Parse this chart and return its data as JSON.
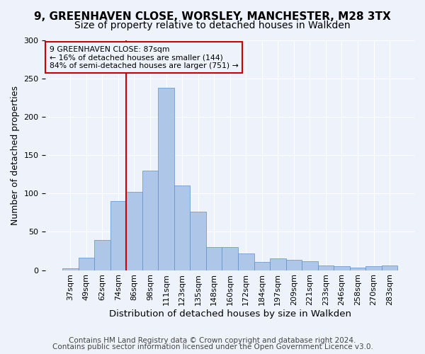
{
  "title1": "9, GREENHAVEN CLOSE, WORSLEY, MANCHESTER, M28 3TX",
  "title2": "Size of property relative to detached houses in Walkden",
  "xlabel": "Distribution of detached houses by size in Walkden",
  "ylabel": "Number of detached properties",
  "footer1": "Contains HM Land Registry data © Crown copyright and database right 2024.",
  "footer2": "Contains public sector information licensed under the Open Government Licence v3.0.",
  "annotation_line1": "9 GREENHAVEN CLOSE: 87sqm",
  "annotation_line2": "← 16% of detached houses are smaller (144)",
  "annotation_line3": "84% of semi-detached houses are larger (751) →",
  "bar_values": [
    2,
    16,
    39,
    90,
    102,
    130,
    238,
    110,
    76,
    30,
    30,
    22,
    11,
    15,
    13,
    12,
    6,
    5,
    3,
    5,
    6
  ],
  "bar_labels": [
    "37sqm",
    "49sqm",
    "62sqm",
    "74sqm",
    "86sqm",
    "98sqm",
    "111sqm",
    "123sqm",
    "135sqm",
    "148sqm",
    "160sqm",
    "172sqm",
    "184sqm",
    "197sqm",
    "209sqm",
    "221sqm",
    "233sqm",
    "246sqm",
    "258sqm",
    "270sqm",
    "283sqm"
  ],
  "bar_color": "#aec6e8",
  "bar_edge_color": "#5b8fc9",
  "vline_x_index": 4,
  "vline_color": "#cc0000",
  "annotation_box_color": "#cc0000",
  "ylim": [
    0,
    300
  ],
  "yticks": [
    0,
    50,
    100,
    150,
    200,
    250,
    300
  ],
  "bg_color": "#eef2fb",
  "grid_color": "#ffffff",
  "title1_fontsize": 11,
  "title2_fontsize": 10,
  "xlabel_fontsize": 9.5,
  "ylabel_fontsize": 9,
  "footer_fontsize": 7.5,
  "tick_fontsize": 8
}
